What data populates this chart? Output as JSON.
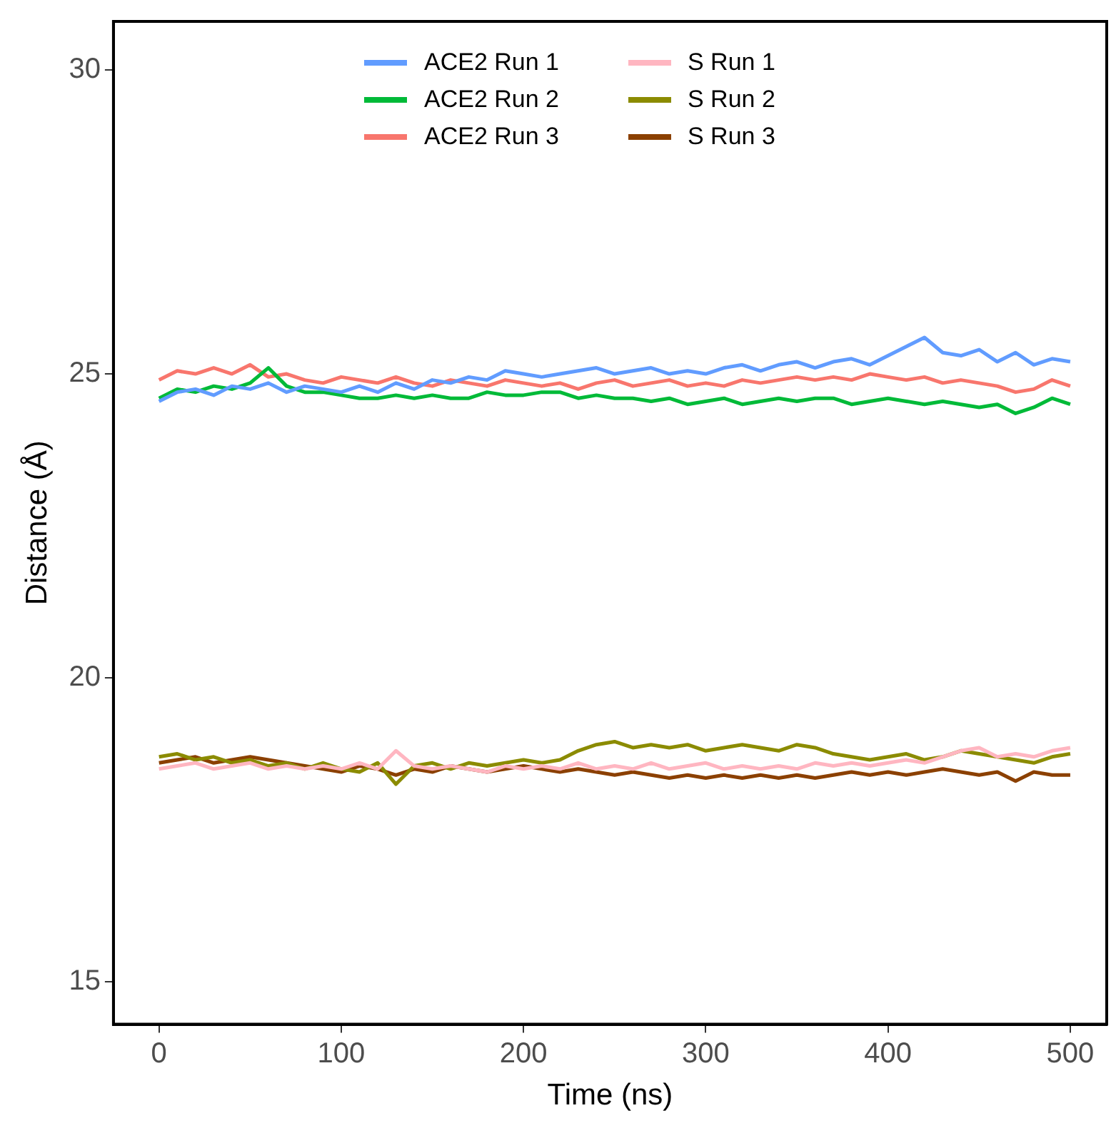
{
  "chart_data": {
    "type": "line",
    "xlabel": "Time (ns)",
    "ylabel": "Distance (Å)",
    "xlim": [
      -25,
      520
    ],
    "ylim": [
      14.3,
      30.8
    ],
    "xticks": [
      0,
      100,
      200,
      300,
      400,
      500
    ],
    "yticks": [
      15,
      20,
      25,
      30
    ],
    "grid": false,
    "legend": "top",
    "marker": "none",
    "line_style": "solid",
    "x": [
      0,
      10,
      20,
      30,
      40,
      50,
      60,
      70,
      80,
      90,
      100,
      110,
      120,
      130,
      140,
      150,
      160,
      170,
      180,
      190,
      200,
      210,
      220,
      230,
      240,
      250,
      260,
      270,
      280,
      290,
      300,
      310,
      320,
      330,
      340,
      350,
      360,
      370,
      380,
      390,
      400,
      410,
      420,
      430,
      440,
      450,
      460,
      470,
      480,
      490,
      500
    ],
    "series": [
      {
        "name": "ACE2 Run 1",
        "color": "#619cff",
        "values": [
          24.55,
          24.7,
          24.75,
          24.65,
          24.8,
          24.75,
          24.85,
          24.7,
          24.8,
          24.75,
          24.7,
          24.8,
          24.7,
          24.85,
          24.75,
          24.9,
          24.85,
          24.95,
          24.9,
          25.05,
          25.0,
          24.95,
          25.0,
          25.05,
          25.1,
          25.0,
          25.05,
          25.1,
          25.0,
          25.05,
          25.0,
          25.1,
          25.15,
          25.05,
          25.15,
          25.2,
          25.1,
          25.2,
          25.25,
          25.15,
          25.3,
          25.45,
          25.6,
          25.35,
          25.3,
          25.4,
          25.2,
          25.35,
          25.15,
          25.25,
          25.2
        ]
      },
      {
        "name": "ACE2 Run 2",
        "color": "#00ba38",
        "values": [
          24.6,
          24.75,
          24.7,
          24.8,
          24.75,
          24.85,
          25.1,
          24.8,
          24.7,
          24.7,
          24.65,
          24.6,
          24.6,
          24.65,
          24.6,
          24.65,
          24.6,
          24.6,
          24.7,
          24.65,
          24.65,
          24.7,
          24.7,
          24.6,
          24.65,
          24.6,
          24.6,
          24.55,
          24.6,
          24.5,
          24.55,
          24.6,
          24.5,
          24.55,
          24.6,
          24.55,
          24.6,
          24.6,
          24.5,
          24.55,
          24.6,
          24.55,
          24.5,
          24.55,
          24.5,
          24.45,
          24.5,
          24.35,
          24.45,
          24.6,
          24.5
        ]
      },
      {
        "name": "ACE2 Run 3",
        "color": "#f8766d",
        "values": [
          24.9,
          25.05,
          25.0,
          25.1,
          25.0,
          25.15,
          24.95,
          25.0,
          24.9,
          24.85,
          24.95,
          24.9,
          24.85,
          24.95,
          24.85,
          24.8,
          24.9,
          24.85,
          24.8,
          24.9,
          24.85,
          24.8,
          24.85,
          24.75,
          24.85,
          24.9,
          24.8,
          24.85,
          24.9,
          24.8,
          24.85,
          24.8,
          24.9,
          24.85,
          24.9,
          24.95,
          24.9,
          24.95,
          24.9,
          25.0,
          24.95,
          24.9,
          24.95,
          24.85,
          24.9,
          24.85,
          24.8,
          24.7,
          24.75,
          24.9,
          24.8
        ]
      },
      {
        "name": "S Run 1",
        "color": "#ffb6c1",
        "values": [
          18.5,
          18.55,
          18.6,
          18.5,
          18.55,
          18.6,
          18.5,
          18.55,
          18.5,
          18.55,
          18.5,
          18.6,
          18.5,
          18.8,
          18.55,
          18.5,
          18.55,
          18.5,
          18.45,
          18.55,
          18.5,
          18.55,
          18.5,
          18.6,
          18.5,
          18.55,
          18.5,
          18.6,
          18.5,
          18.55,
          18.6,
          18.5,
          18.55,
          18.5,
          18.55,
          18.5,
          18.6,
          18.55,
          18.6,
          18.55,
          18.6,
          18.65,
          18.6,
          18.7,
          18.8,
          18.85,
          18.7,
          18.75,
          18.7,
          18.8,
          18.85
        ]
      },
      {
        "name": "S Run 2",
        "color": "#8b8b00",
        "values": [
          18.7,
          18.75,
          18.65,
          18.7,
          18.6,
          18.65,
          18.55,
          18.6,
          18.5,
          18.6,
          18.5,
          18.45,
          18.6,
          18.25,
          18.55,
          18.6,
          18.5,
          18.6,
          18.55,
          18.6,
          18.65,
          18.6,
          18.65,
          18.8,
          18.9,
          18.95,
          18.85,
          18.9,
          18.85,
          18.9,
          18.8,
          18.85,
          18.9,
          18.85,
          18.8,
          18.9,
          18.85,
          18.75,
          18.7,
          18.65,
          18.7,
          18.75,
          18.65,
          18.7,
          18.8,
          18.75,
          18.7,
          18.65,
          18.6,
          18.7,
          18.75
        ]
      },
      {
        "name": "S Run 3",
        "color": "#8b4000",
        "values": [
          18.6,
          18.65,
          18.7,
          18.6,
          18.65,
          18.7,
          18.65,
          18.6,
          18.55,
          18.5,
          18.45,
          18.55,
          18.5,
          18.4,
          18.5,
          18.45,
          18.55,
          18.5,
          18.45,
          18.5,
          18.55,
          18.5,
          18.45,
          18.5,
          18.45,
          18.4,
          18.45,
          18.4,
          18.35,
          18.4,
          18.35,
          18.4,
          18.35,
          18.4,
          18.35,
          18.4,
          18.35,
          18.4,
          18.45,
          18.4,
          18.45,
          18.4,
          18.45,
          18.5,
          18.45,
          18.4,
          18.45,
          18.3,
          18.45,
          18.4,
          18.4
        ]
      }
    ]
  }
}
